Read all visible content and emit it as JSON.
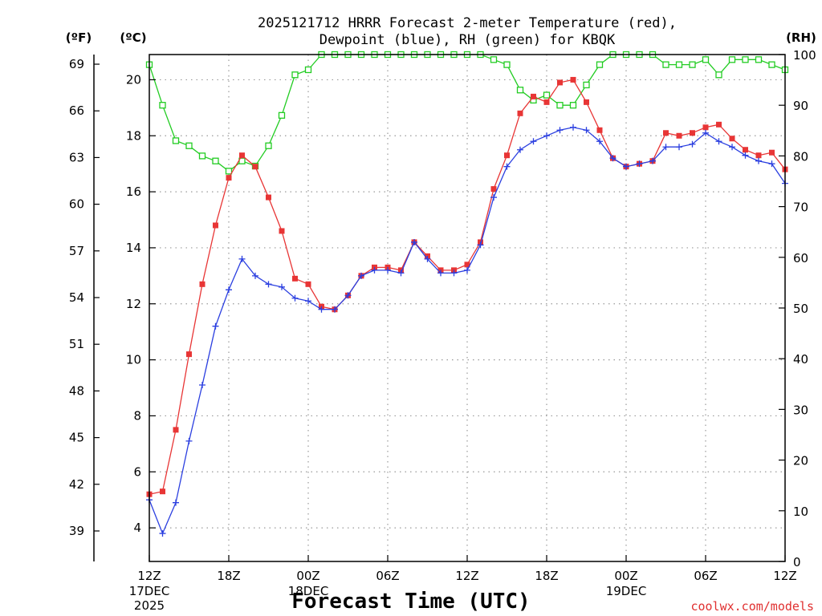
{
  "chart_data": {
    "type": "line",
    "title_line1": "2025121712 HRRR Forecast 2-meter Temperature (red),",
    "title_line2": "Dewpoint (blue), RH (green) for KBQK",
    "xlabel": "Forecast Time (UTC)",
    "credit": "coolwx.com/models",
    "units": {
      "fahrenheit": "(ºF)",
      "celsius": "(ºC)",
      "rh": "(RH)"
    },
    "x_hours_range": [
      0,
      48
    ],
    "celsius_range": [
      2.8,
      20.9
    ],
    "rh_range": [
      0,
      100
    ],
    "fahrenheit_ticks": [
      "39",
      "42",
      "45",
      "48",
      "51",
      "54",
      "57",
      "60",
      "63",
      "66",
      "69"
    ],
    "celsius_ticks": [
      "4",
      "6",
      "8",
      "10",
      "12",
      "14",
      "16",
      "18",
      "20"
    ],
    "rh_ticks": [
      "0",
      "10",
      "20",
      "30",
      "40",
      "50",
      "60",
      "70",
      "80",
      "90",
      "100"
    ],
    "x_ticks": [
      {
        "hour": 0,
        "label": "12Z",
        "sub1": "17DEC",
        "sub2": "2025"
      },
      {
        "hour": 6,
        "label": "18Z",
        "sub1": "",
        "sub2": ""
      },
      {
        "hour": 12,
        "label": "00Z",
        "sub1": "18DEC",
        "sub2": ""
      },
      {
        "hour": 18,
        "label": "06Z",
        "sub1": "",
        "sub2": ""
      },
      {
        "hour": 24,
        "label": "12Z",
        "sub1": "",
        "sub2": ""
      },
      {
        "hour": 30,
        "label": "18Z",
        "sub1": "",
        "sub2": ""
      },
      {
        "hour": 36,
        "label": "00Z",
        "sub1": "19DEC",
        "sub2": ""
      },
      {
        "hour": 42,
        "label": "06Z",
        "sub1": "",
        "sub2": ""
      },
      {
        "hour": 48,
        "label": "12Z",
        "sub1": "",
        "sub2": ""
      }
    ],
    "colors": {
      "temperature": "#e83535",
      "dewpoint": "#2b3fe0",
      "rh": "#22cc22",
      "grid": "#999999"
    },
    "series": [
      {
        "name": "Temperature",
        "unit": "C",
        "values": [
          5.2,
          5.3,
          7.5,
          10.2,
          12.7,
          14.8,
          16.5,
          17.3,
          16.9,
          15.8,
          14.6,
          12.9,
          12.7,
          11.9,
          11.8,
          12.3,
          13.0,
          13.3,
          13.3,
          13.2,
          14.2,
          13.7,
          13.2,
          13.2,
          13.4,
          14.2,
          16.1,
          17.3,
          18.8,
          19.4,
          19.2,
          19.9,
          20.0,
          19.2,
          18.2,
          17.2,
          16.9,
          17.0,
          17.1,
          18.1,
          18.0,
          18.1,
          18.3,
          18.4,
          17.9,
          17.5,
          17.3,
          17.4,
          16.8
        ]
      },
      {
        "name": "Dewpoint",
        "unit": "C",
        "values": [
          5.0,
          3.8,
          4.9,
          7.1,
          9.1,
          11.2,
          12.5,
          13.6,
          13.0,
          12.7,
          12.6,
          12.2,
          12.1,
          11.8,
          11.8,
          12.3,
          13.0,
          13.2,
          13.2,
          13.1,
          14.2,
          13.6,
          13.1,
          13.1,
          13.2,
          14.1,
          15.8,
          16.9,
          17.5,
          17.8,
          18.0,
          18.2,
          18.3,
          18.2,
          17.8,
          17.2,
          16.9,
          17.0,
          17.1,
          17.6,
          17.6,
          17.7,
          18.1,
          17.8,
          17.6,
          17.3,
          17.1,
          17.0,
          16.3
        ]
      },
      {
        "name": "RH",
        "unit": "%",
        "values": [
          98,
          90,
          83,
          82,
          80,
          79,
          77,
          79,
          78,
          82,
          88,
          96,
          97,
          100,
          100,
          100,
          100,
          100,
          100,
          100,
          100,
          100,
          100,
          100,
          100,
          100,
          99,
          98,
          93,
          91,
          92,
          90,
          90,
          94,
          98,
          100,
          100,
          100,
          100,
          98,
          98,
          98,
          99,
          96,
          99,
          99,
          99,
          98,
          97
        ]
      }
    ]
  }
}
